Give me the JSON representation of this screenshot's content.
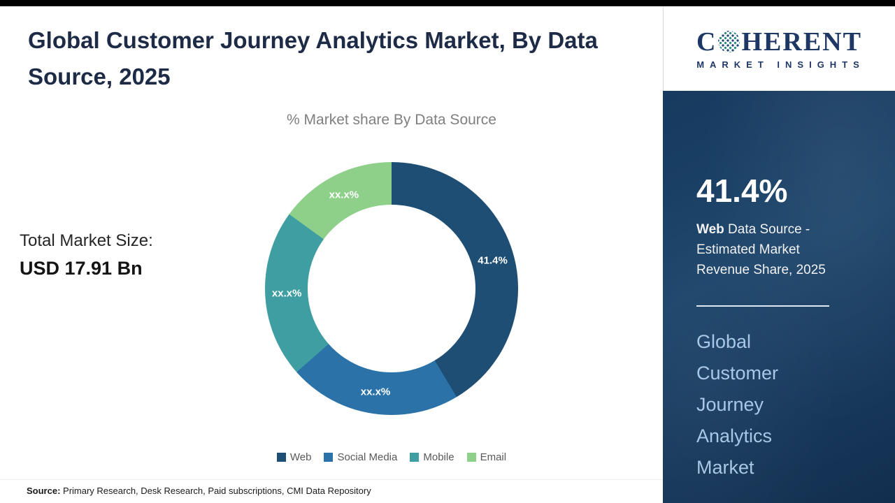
{
  "header": {
    "title": "Global Customer Journey Analytics Market, By Data Source, 2025"
  },
  "main": {
    "market_size_label": "Total Market Size:",
    "market_size_value": "USD 17.91 Bn",
    "footer_source_label": "Source:",
    "footer_source_text": " Primary Research, Desk Research, Paid subscriptions, CMI Data Repository"
  },
  "chart_data": {
    "type": "pie",
    "subtype": "donut",
    "title": "% Market share By Data Source",
    "legend_position": "bottom",
    "segments": [
      {
        "label": "Web",
        "value": 41.4,
        "display": "41.4%",
        "color": "#1f4e74"
      },
      {
        "label": "Social Media",
        "value": 22.1,
        "display": "xx.x%",
        "color": "#2a72a8"
      },
      {
        "label": "Mobile",
        "value": 21.5,
        "display": "xx.x%",
        "color": "#3f9ea1"
      },
      {
        "label": "Email",
        "value": 15.0,
        "display": "xx.x%",
        "color": "#8ed089"
      }
    ]
  },
  "panel": {
    "logo": {
      "line1_pre": "C",
      "line1_post": "HERENT",
      "line2": "MARKET INSIGHTS"
    },
    "stat_value": "41.4%",
    "stat_desc_bold": "Web",
    "stat_desc_rest": " Data Source - Estimated Market Revenue Share, 2025",
    "title": "Global Customer Journey Analytics Market"
  }
}
